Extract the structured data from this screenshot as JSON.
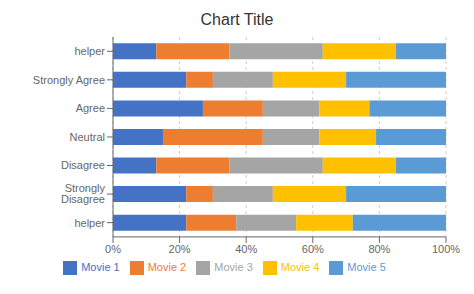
{
  "chart_data": {
    "type": "bar",
    "title": "Chart Title",
    "orientation": "horizontal",
    "stacked": true,
    "categories": [
      "helper",
      "Strongly Disagree",
      "Disagree",
      "Neutral",
      "Agree",
      "Strongly Agree",
      "helper"
    ],
    "series": [
      {
        "name": "Movie 1",
        "color": "#4472C4",
        "values": [
          0.22,
          0.22,
          0.13,
          0.15,
          0.27,
          0.22,
          0.13
        ]
      },
      {
        "name": "Movie 2",
        "color": "#ED7D31",
        "values": [
          0.15,
          0.08,
          0.22,
          0.3,
          0.18,
          0.08,
          0.22
        ]
      },
      {
        "name": "Movie 3",
        "color": "#A5A5A5",
        "values": [
          0.18,
          0.18,
          0.28,
          0.17,
          0.17,
          0.18,
          0.28
        ]
      },
      {
        "name": "Movie 4",
        "color": "#FFC000",
        "values": [
          0.17,
          0.22,
          0.22,
          0.17,
          0.15,
          0.22,
          0.22
        ]
      },
      {
        "name": "Movie 5",
        "color": "#5B9BD5",
        "values": [
          0.28,
          0.3,
          0.15,
          0.21,
          0.23,
          0.3,
          0.15
        ]
      }
    ],
    "xlim": [
      0,
      1
    ],
    "xticks": [
      {
        "value": 0.0,
        "label": "0%"
      },
      {
        "value": 0.2,
        "label": "20%"
      },
      {
        "value": 0.4,
        "label": "40%"
      },
      {
        "value": 0.6,
        "label": "60%"
      },
      {
        "value": 0.8,
        "label": "80%"
      },
      {
        "value": 1.0,
        "label": "100%"
      }
    ],
    "grid": true,
    "legend": "bottom"
  }
}
